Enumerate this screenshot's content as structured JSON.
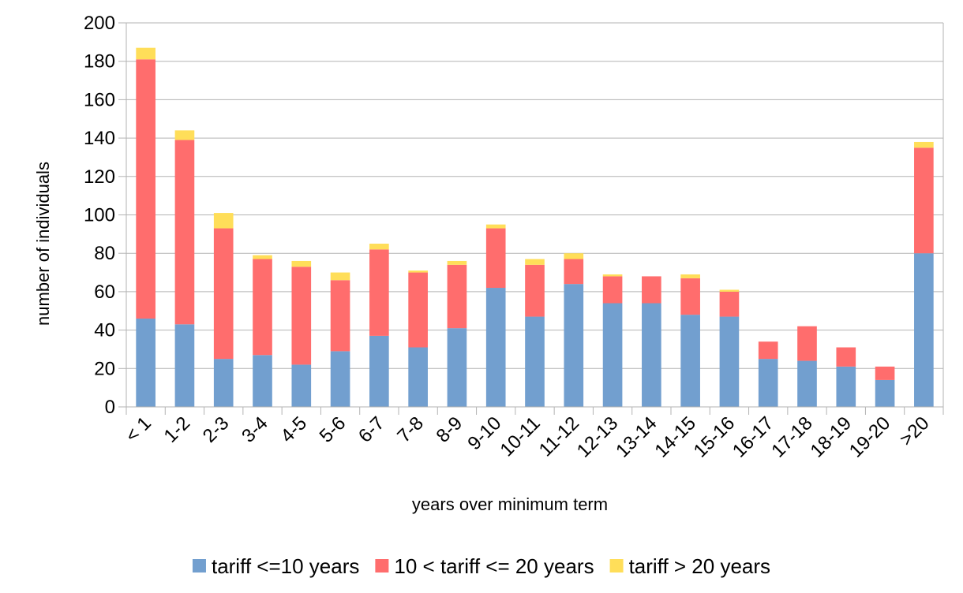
{
  "chart_data": {
    "type": "bar",
    "stacked": true,
    "xlabel": "years over minimum term",
    "ylabel": "number of individuals",
    "ylim": [
      0,
      200
    ],
    "yticks": [
      0,
      20,
      40,
      60,
      80,
      100,
      120,
      140,
      160,
      180,
      200
    ],
    "grid": true,
    "legend_position": "bottom",
    "categories": [
      "< 1",
      "1-2",
      "2-3",
      "3-4",
      "4-5",
      "5-6",
      "6-7",
      "7-8",
      "8-9",
      "9-10",
      "10-11",
      "11-12",
      "12-13",
      "13-14",
      "14-15",
      "15-16",
      "16-17",
      "17-18",
      "18-19",
      "19-20",
      ">20"
    ],
    "series": [
      {
        "name": "tariff <=10 years",
        "color": "#729fcf",
        "values": [
          46,
          43,
          25,
          27,
          22,
          29,
          37,
          31,
          41,
          62,
          47,
          64,
          54,
          54,
          48,
          47,
          25,
          24,
          21,
          14,
          80
        ]
      },
      {
        "name": "10 < tariff <= 20 years",
        "color": "#ff6d6d",
        "values": [
          135,
          96,
          68,
          50,
          51,
          37,
          45,
          39,
          33,
          31,
          27,
          13,
          14,
          14,
          19,
          13,
          9,
          18,
          10,
          7,
          55
        ]
      },
      {
        "name": "tariff > 20 years",
        "color": "#ffde59",
        "values": [
          6,
          5,
          8,
          2,
          3,
          4,
          3,
          1,
          2,
          2,
          3,
          3,
          1,
          0,
          2,
          1,
          0,
          0,
          0,
          0,
          3
        ]
      }
    ]
  }
}
